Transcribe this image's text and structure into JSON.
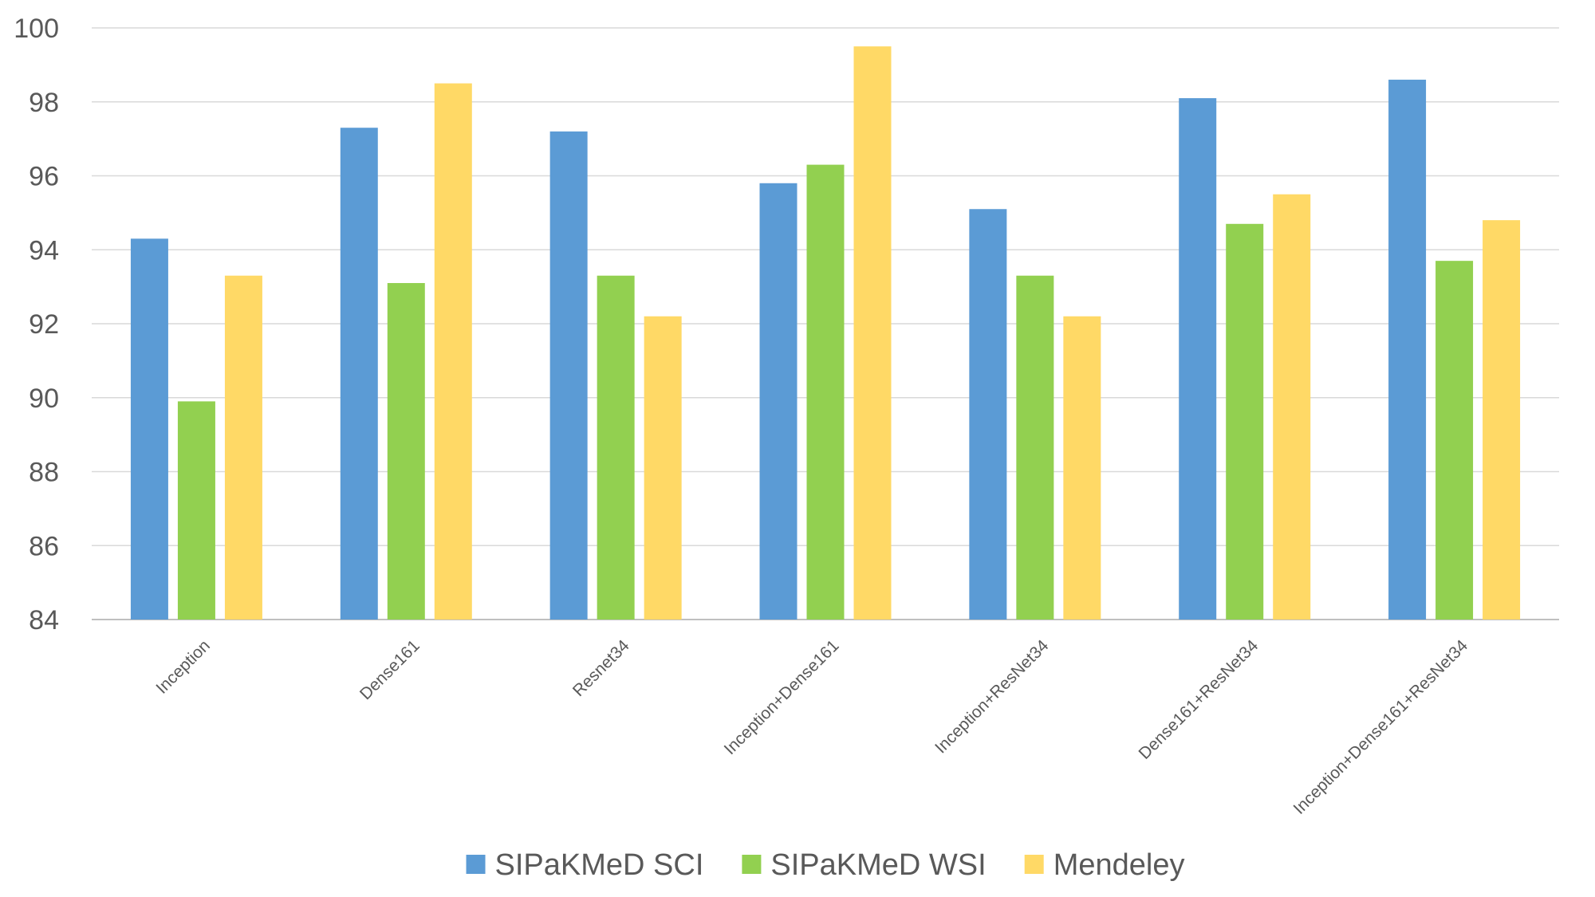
{
  "chart_data": {
    "type": "bar",
    "title": "",
    "xlabel": "",
    "ylabel": "",
    "ylim": [
      84,
      100
    ],
    "yticks": [
      84,
      86,
      88,
      90,
      92,
      94,
      96,
      98,
      100
    ],
    "grid": true,
    "legend_position": "bottom-center",
    "categories": [
      "Inception",
      "Dense161",
      "Resnet34",
      "Inception+Dense161",
      "Inception+ResNet34",
      "Dense161+ResNet34",
      "Inception+Dense161+ResNet34"
    ],
    "series": [
      {
        "name": "SIPaKMeD SCI",
        "color": "#5b9bd5",
        "values": [
          94.3,
          97.3,
          97.2,
          95.8,
          95.1,
          98.1,
          98.6
        ]
      },
      {
        "name": "SIPaKMeD WSI",
        "color": "#92d050",
        "values": [
          89.9,
          93.1,
          93.3,
          96.3,
          93.3,
          94.7,
          93.7
        ]
      },
      {
        "name": "Mendeley",
        "color": "#ffd966",
        "values": [
          93.3,
          98.5,
          92.2,
          99.5,
          92.2,
          95.5,
          94.8
        ]
      }
    ]
  }
}
